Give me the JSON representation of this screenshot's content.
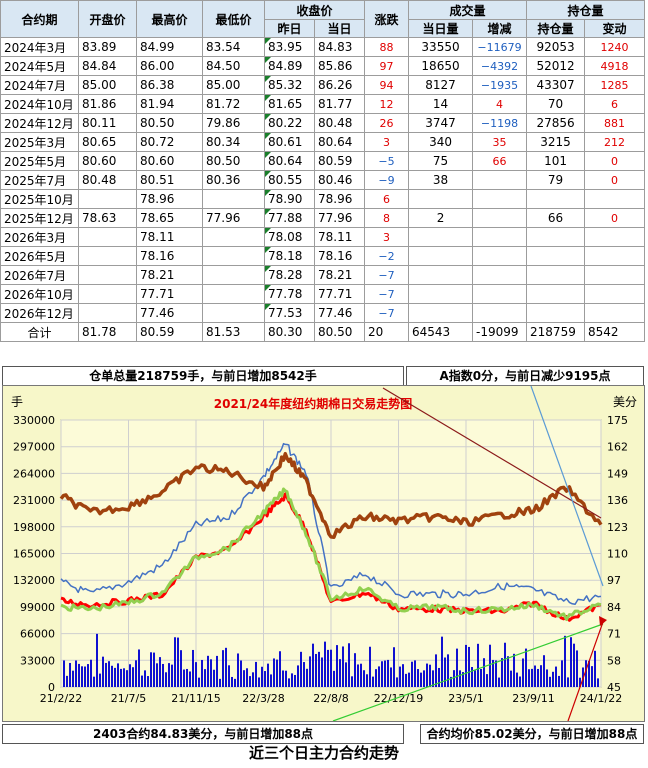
{
  "table": {
    "headers_top": {
      "contract": "合约期",
      "open": "开盘价",
      "high": "最高价",
      "low": "最低价",
      "close_group": "收盘价",
      "change": "涨跌",
      "volume_group": "成交量",
      "oi_group": "持仓量"
    },
    "headers_sub": {
      "prev": "昨日",
      "today": "当日",
      "vol_today": "当日量",
      "vol_change": "增减",
      "oi": "持仓量",
      "oi_change": "变动"
    },
    "rows": [
      {
        "contract": "2024年3月",
        "open": "83.89",
        "high": "84.99",
        "low": "83.54",
        "prev": "83.95",
        "today": "84.83",
        "change": "88",
        "vol": "33550",
        "vol_chg": "−11679",
        "oi": "92053",
        "oi_chg": "1240"
      },
      {
        "contract": "2024年5月",
        "open": "84.84",
        "high": "86.00",
        "low": "84.50",
        "prev": "84.89",
        "today": "85.86",
        "change": "97",
        "vol": "18650",
        "vol_chg": "−4392",
        "oi": "52012",
        "oi_chg": "4918"
      },
      {
        "contract": "2024年7月",
        "open": "85.00",
        "high": "86.38",
        "low": "85.00",
        "prev": "85.32",
        "today": "86.26",
        "change": "94",
        "vol": "8127",
        "vol_chg": "−1935",
        "oi": "43307",
        "oi_chg": "1285"
      },
      {
        "contract": "2024年10月",
        "open": "81.86",
        "high": "81.94",
        "low": "81.72",
        "prev": "81.65",
        "today": "81.77",
        "change": "12",
        "vol": "14",
        "vol_chg": "4",
        "oi": "70",
        "oi_chg": "6"
      },
      {
        "contract": "2024年12月",
        "open": "80.11",
        "high": "80.50",
        "low": "79.86",
        "prev": "80.22",
        "today": "80.48",
        "change": "26",
        "vol": "3747",
        "vol_chg": "−1198",
        "oi": "27856",
        "oi_chg": "881"
      },
      {
        "contract": "2025年3月",
        "open": "80.65",
        "high": "80.72",
        "low": "80.34",
        "prev": "80.61",
        "today": "80.64",
        "change": "3",
        "vol": "340",
        "vol_chg": "35",
        "oi": "3215",
        "oi_chg": "212"
      },
      {
        "contract": "2025年5月",
        "open": "80.60",
        "high": "80.60",
        "low": "80.50",
        "prev": "80.64",
        "today": "80.59",
        "change": "−5",
        "vol": "75",
        "vol_chg": "66",
        "oi": "101",
        "oi_chg": "0"
      },
      {
        "contract": "2025年7月",
        "open": "80.48",
        "high": "80.51",
        "low": "80.36",
        "prev": "80.55",
        "today": "80.46",
        "change": "−9",
        "vol": "38",
        "vol_chg": "",
        "oi": "79",
        "oi_chg": "0"
      },
      {
        "contract": "2025年10月",
        "open": "",
        "high": "78.96",
        "low": "",
        "prev": "78.90",
        "today": "78.96",
        "change": "6",
        "vol": "",
        "vol_chg": "",
        "oi": "",
        "oi_chg": ""
      },
      {
        "contract": "2025年12月",
        "open": "78.63",
        "high": "78.65",
        "low": "77.96",
        "prev": "77.88",
        "today": "77.96",
        "change": "8",
        "vol": "2",
        "vol_chg": "",
        "oi": "66",
        "oi_chg": "0"
      },
      {
        "contract": "2026年3月",
        "open": "",
        "high": "78.11",
        "low": "",
        "prev": "78.08",
        "today": "78.11",
        "change": "3",
        "vol": "",
        "vol_chg": "",
        "oi": "",
        "oi_chg": ""
      },
      {
        "contract": "2026年5月",
        "open": "",
        "high": "78.16",
        "low": "",
        "prev": "78.18",
        "today": "78.16",
        "change": "−2",
        "vol": "",
        "vol_chg": "",
        "oi": "",
        "oi_chg": ""
      },
      {
        "contract": "2026年7月",
        "open": "",
        "high": "78.21",
        "low": "",
        "prev": "78.28",
        "today": "78.21",
        "change": "−7",
        "vol": "",
        "vol_chg": "",
        "oi": "",
        "oi_chg": ""
      },
      {
        "contract": "2026年10月",
        "open": "",
        "high": "77.71",
        "low": "",
        "prev": "77.78",
        "today": "77.71",
        "change": "−7",
        "vol": "",
        "vol_chg": "",
        "oi": "",
        "oi_chg": ""
      },
      {
        "contract": "2026年12月",
        "open": "",
        "high": "77.46",
        "low": "",
        "prev": "77.53",
        "today": "77.46",
        "change": "−7",
        "vol": "",
        "vol_chg": "",
        "oi": "",
        "oi_chg": ""
      }
    ],
    "total": {
      "contract": "合计",
      "open": "81.78",
      "high": "80.59",
      "low": "81.53",
      "prev": "80.30",
      "today": "80.50",
      "change": "20",
      "vol": "64543",
      "vol_chg": "-19099",
      "oi": "218759",
      "oi_chg": "8542"
    }
  },
  "info": {
    "warehouse": "仓单总量218759手，与前日增加8542手",
    "a_index": "A指数0分，与前日减少9195点",
    "main_contract": "2403合约84.83美分，与前日增加88点",
    "avg_price": "合约均价85.02美分，与前日增加88点",
    "bottom_title": "近三个日主力合约走势"
  },
  "colors": {
    "volume_bar": "#1010d0",
    "price_red": "#ff0000",
    "price_green": "#92d050",
    "oi_blue": "#4472c4",
    "index_brown": "#a0420e",
    "title_red": "#e00000",
    "bg": "#f7f7c9",
    "up": "#e00000",
    "down": "#1f5fbf"
  },
  "chart_data": {
    "type": "line",
    "title": "2021/24年度纽约期棉日交易走势图",
    "left_unit": "手",
    "right_unit": "美分",
    "x_ticks": [
      "21/2/22",
      "21/7/5",
      "21/11/15",
      "22/3/28",
      "22/8/8",
      "22/12/19",
      "23/5/1",
      "23/9/11",
      "24/1/22"
    ],
    "left_ticks": [
      0,
      33000,
      66000,
      99000,
      132000,
      165000,
      198000,
      231000,
      264000,
      297000,
      330000
    ],
    "right_ticks": [
      45,
      58,
      71,
      84,
      97,
      110,
      123,
      136,
      149,
      162,
      175
    ],
    "ylim_left": [
      0,
      330000
    ],
    "ylim_right": [
      45,
      175
    ],
    "series_red_price_cents": {
      "axis": "right",
      "x": [
        "21/2/22",
        "21/4/20",
        "21/7/5",
        "21/9/10",
        "21/11/15",
        "22/1/20",
        "22/3/28",
        "22/5/10",
        "22/6/20",
        "22/8/8",
        "22/10/15",
        "22/12/19",
        "23/3/1",
        "23/5/1",
        "23/7/15",
        "23/9/11",
        "23/11/15",
        "24/1/22"
      ],
      "y": [
        87,
        85,
        87,
        90,
        108,
        112,
        128,
        138,
        122,
        86,
        91,
        83,
        83,
        82,
        82,
        86,
        78,
        85
      ]
    },
    "series_green_price_cents": {
      "axis": "right",
      "x": [
        "21/2/22",
        "21/4/20",
        "21/7/5",
        "21/9/10",
        "21/11/15",
        "22/1/20",
        "22/3/28",
        "22/5/10",
        "22/6/20",
        "22/8/8",
        "22/10/15",
        "22/12/19",
        "23/3/1",
        "23/5/1",
        "23/7/15",
        "23/9/11",
        "23/11/15",
        "24/1/22"
      ],
      "y": [
        84,
        83,
        86,
        91,
        108,
        113,
        130,
        141,
        120,
        88,
        93,
        83,
        84,
        82,
        83,
        85,
        79,
        85
      ]
    },
    "series_blue_oi_lots": {
      "axis": "left",
      "x": [
        "21/2/22",
        "21/4/20",
        "21/7/5",
        "21/9/10",
        "21/11/15",
        "22/1/20",
        "22/3/28",
        "22/5/10",
        "22/6/20",
        "22/8/8",
        "22/10/15",
        "22/12/19",
        "23/3/1",
        "23/5/1",
        "23/7/15",
        "23/9/11",
        "23/11/15",
        "24/1/22"
      ],
      "y": [
        130000,
        115000,
        130000,
        150000,
        200000,
        210000,
        260000,
        300000,
        265000,
        120000,
        140000,
        115000,
        115000,
        115000,
        125000,
        120000,
        105000,
        112000
      ]
    },
    "series_brown_index_cents": {
      "axis": "right",
      "x": [
        "21/2/22",
        "21/4/20",
        "21/7/5",
        "21/9/10",
        "21/11/15",
        "22/1/20",
        "22/3/28",
        "22/5/10",
        "22/6/20",
        "22/8/8",
        "22/10/15",
        "22/12/19",
        "23/3/1",
        "23/5/1",
        "23/7/15",
        "23/9/11",
        "23/11/15",
        "24/1/22"
      ],
      "y": [
        138,
        130,
        133,
        140,
        152,
        150,
        142,
        158,
        145,
        119,
        128,
        126,
        128,
        125,
        129,
        131,
        142,
        124
      ]
    },
    "volume_lots_range": [
      0,
      70000
    ]
  }
}
